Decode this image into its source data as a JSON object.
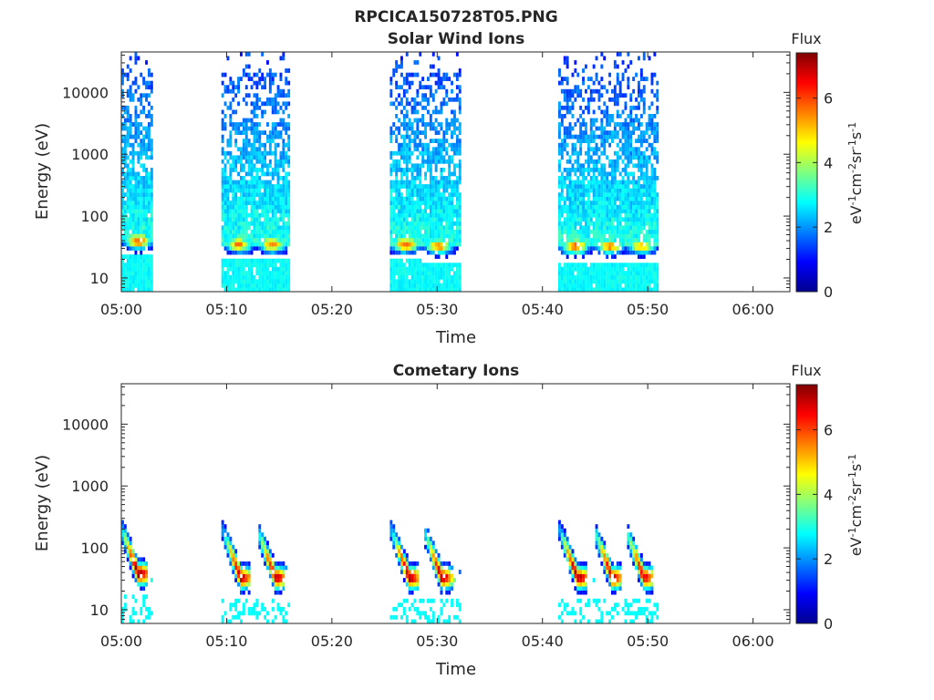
{
  "figure": {
    "title": "RPCICA150728T05.PNG"
  },
  "chart_data": [
    {
      "type": "heatmap",
      "title": "Solar Wind Ions",
      "xlabel": "Time",
      "ylabel": "Energy (eV)",
      "y_scale": "log",
      "x_ticks": [
        "05:00",
        "05:10",
        "05:20",
        "05:30",
        "05:40",
        "05:50",
        "06:00"
      ],
      "x_range_minutes": [
        0,
        63.5
      ],
      "y_ticks": [
        "10",
        "100",
        "1000",
        "10000"
      ],
      "y_range": [
        6,
        45000
      ],
      "colorbar": {
        "title": "Flux",
        "label": "eV-1cm-2sr-1s-1",
        "ticks": [
          "0",
          "2",
          "4",
          "6"
        ],
        "range": [
          0,
          7.4
        ],
        "colormap": "jet"
      },
      "data_intervals_minutes": [
        [
          0,
          3
        ],
        [
          9.5,
          15.9
        ],
        [
          25.5,
          32.1
        ],
        [
          41.5,
          51
        ]
      ],
      "peak_flux_bands": [
        {
          "t": 1.5,
          "energy": 40,
          "flux": 6.0
        },
        {
          "t": 11.0,
          "energy": 35,
          "flux": 5.5
        },
        {
          "t": 14.2,
          "energy": 35,
          "flux": 5.5
        },
        {
          "t": 26.9,
          "energy": 35,
          "flux": 6.0
        },
        {
          "t": 30.0,
          "energy": 33,
          "flux": 5.8
        },
        {
          "t": 43.0,
          "energy": 33,
          "flux": 6.0
        },
        {
          "t": 46.3,
          "energy": 33,
          "flux": 5.7
        },
        {
          "t": 49.3,
          "energy": 33,
          "flux": 5.3
        }
      ],
      "grid": false,
      "legend": "colorbar-right"
    },
    {
      "type": "heatmap",
      "title": "Cometary Ions",
      "xlabel": "Time",
      "ylabel": "Energy (eV)",
      "y_scale": "log",
      "x_ticks": [
        "05:00",
        "05:10",
        "05:20",
        "05:30",
        "05:40",
        "05:50",
        "06:00"
      ],
      "x_range_minutes": [
        0,
        63.5
      ],
      "y_ticks": [
        "10",
        "100",
        "1000",
        "10000"
      ],
      "y_range": [
        6,
        45000
      ],
      "colorbar": {
        "title": "Flux",
        "label": "eV-1cm-2sr-1s-1",
        "ticks": [
          "0",
          "2",
          "4",
          "6"
        ],
        "range": [
          0,
          7.4
        ],
        "colormap": "jet"
      },
      "data_intervals_minutes": [
        [
          0,
          3
        ],
        [
          9.5,
          15.9
        ],
        [
          25.5,
          32.1
        ],
        [
          41.5,
          51
        ]
      ],
      "peak_flux_bands": [
        {
          "t": 1.5,
          "energy": 38,
          "flux": 7.2
        },
        {
          "t": 11.2,
          "energy": 33,
          "flux": 7.0
        },
        {
          "t": 14.5,
          "energy": 33,
          "flux": 7.0
        },
        {
          "t": 27.2,
          "energy": 33,
          "flux": 7.2
        },
        {
          "t": 30.3,
          "energy": 33,
          "flux": 7.0
        },
        {
          "t": 43.2,
          "energy": 33,
          "flux": 7.2
        },
        {
          "t": 46.5,
          "energy": 33,
          "flux": 7.0
        },
        {
          "t": 49.5,
          "energy": 33,
          "flux": 6.8
        }
      ],
      "grid": false,
      "legend": "colorbar-right"
    }
  ]
}
